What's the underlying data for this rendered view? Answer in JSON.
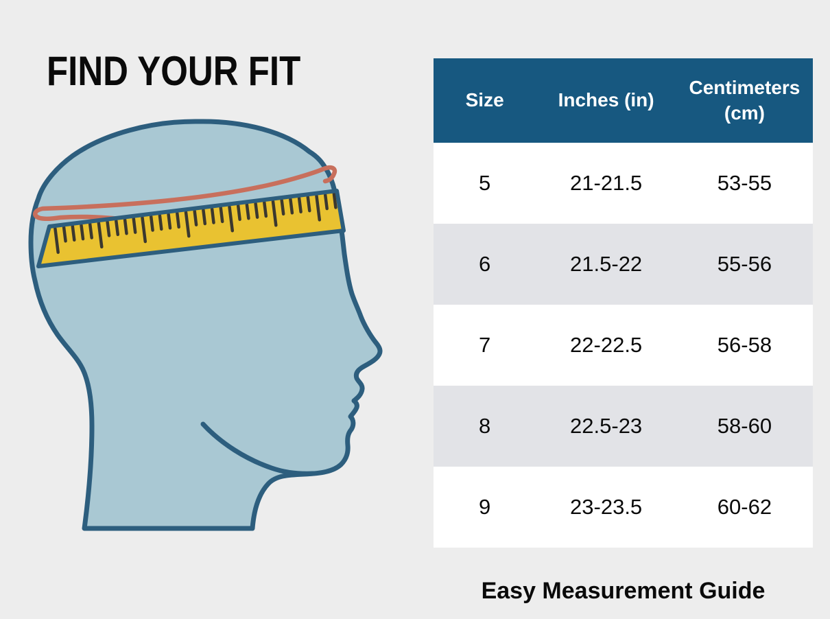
{
  "title": "FIND YOUR FIT",
  "caption": "Easy Measurement Guide",
  "illustration": {
    "name": "head-profile-with-measuring-tape",
    "description": "Side profile of a head with a yellow measuring tape band around the forehead and a red measuring cord circling the head"
  },
  "table": {
    "headers": [
      "Size",
      "Inches (in)",
      "Centimeters (cm)"
    ],
    "rows": [
      {
        "size": "5",
        "inches": "21-21.5",
        "cm": "53-55"
      },
      {
        "size": "6",
        "inches": "21.5-22",
        "cm": "55-56"
      },
      {
        "size": "7",
        "inches": "22-22.5",
        "cm": "56-58"
      },
      {
        "size": "8",
        "inches": "22.5-23",
        "cm": "58-60"
      },
      {
        "size": "9",
        "inches": "23-23.5",
        "cm": "60-62"
      }
    ]
  },
  "chart_data": {
    "type": "table",
    "title": "Easy Measurement Guide",
    "columns": [
      "Size",
      "Inches (in)",
      "Centimeters (cm)"
    ],
    "rows": [
      [
        "5",
        "21-21.5",
        "53-55"
      ],
      [
        "6",
        "21.5-22",
        "55-56"
      ],
      [
        "7",
        "22-22.5",
        "56-58"
      ],
      [
        "8",
        "22.5-23",
        "58-60"
      ],
      [
        "9",
        "23-23.5",
        "60-62"
      ]
    ]
  },
  "colors": {
    "page-bg": "#ededed",
    "header-blue": "#175880",
    "row-white": "#ffffff",
    "row-alt-gray": "#e2e3e7",
    "text-black": "#0a0a0a",
    "head-fill": "#a9c8d3",
    "head-outline": "#2d5e7e",
    "tape-yellow": "#e9c231",
    "tape-tick": "#3b382f",
    "cord-red": "#c86f5c"
  }
}
